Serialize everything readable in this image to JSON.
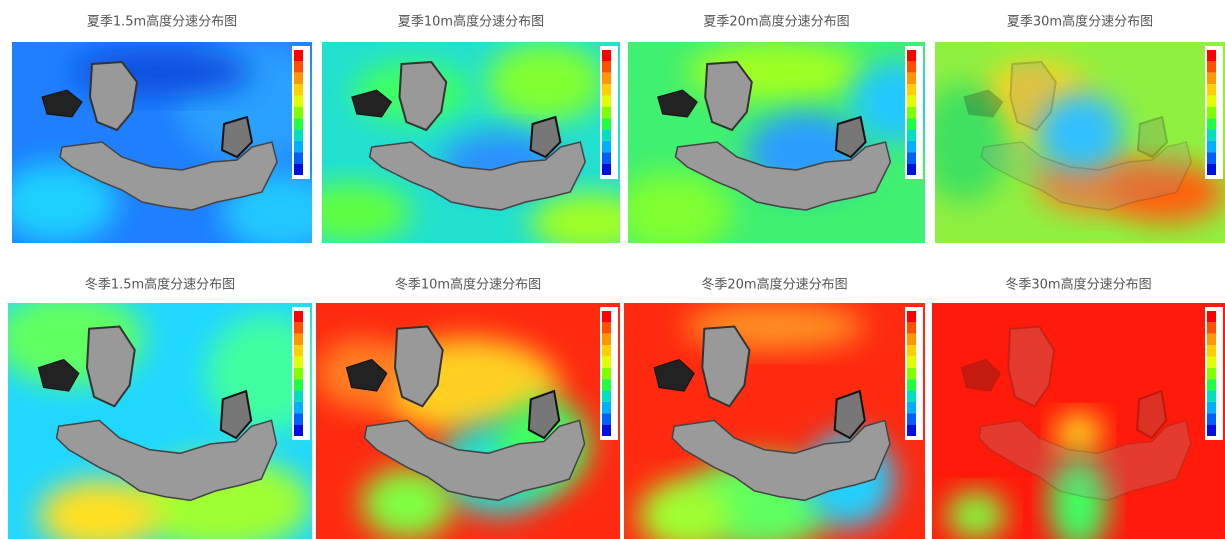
{
  "panels": [
    {
      "title": "夏季1.5m高度分速分布图"
    },
    {
      "title": "夏季10m高度分速分布图"
    },
    {
      "title": "夏季20m高度分速分布图"
    },
    {
      "title": "夏季30m高度分速分布图"
    },
    {
      "title": "冬季1.5m高度分速分布图"
    },
    {
      "title": "冬季10m高度分速分布图"
    },
    {
      "title": "冬季20m高度分速分布图"
    },
    {
      "title": "冬季30m高度分速分布图"
    }
  ]
}
